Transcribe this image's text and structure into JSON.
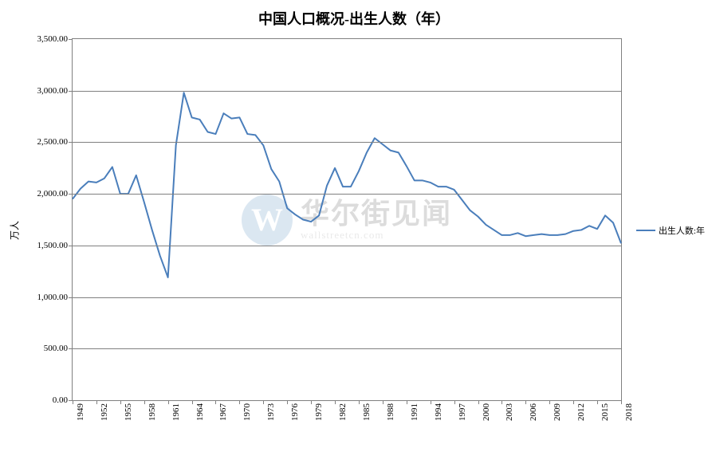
{
  "chart": {
    "type": "line",
    "title": "中国人口概况-出生人数（年）",
    "title_fontsize": 18,
    "ylabel": "万人",
    "label_fontsize": 12,
    "background_color": "#ffffff",
    "plot_border_color": "#808080",
    "grid_color": "#808080",
    "line_color": "#4a7ebb",
    "line_width": 2,
    "text_color": "#000000",
    "tick_fontsize": 11,
    "ylim": [
      0,
      3500
    ],
    "ytick_step": 500,
    "yticks": [
      "0.00",
      "500.00",
      "1,000.00",
      "1,500.00",
      "2,000.00",
      "2,500.00",
      "3,000.00",
      "3,500.00"
    ],
    "xtick_step": 3,
    "xticks": [
      "1949",
      "1952",
      "1955",
      "1958",
      "1961",
      "1964",
      "1967",
      "1970",
      "1973",
      "1976",
      "1979",
      "1982",
      "1985",
      "1988",
      "1991",
      "1994",
      "1997",
      "2000",
      "2003",
      "2006",
      "2009",
      "2012",
      "2015",
      "2018"
    ],
    "legend": {
      "label": "出生人数:年",
      "position": "right-middle"
    },
    "watermark": {
      "icon_text": "W",
      "main": "华尔街见闻",
      "sub": "wallstreetcn.com",
      "opacity": 0.18
    },
    "years": [
      1949,
      1950,
      1951,
      1952,
      1953,
      1954,
      1955,
      1956,
      1957,
      1958,
      1959,
      1960,
      1961,
      1962,
      1963,
      1964,
      1965,
      1966,
      1967,
      1968,
      1969,
      1970,
      1971,
      1972,
      1973,
      1974,
      1975,
      1976,
      1977,
      1978,
      1979,
      1980,
      1981,
      1982,
      1983,
      1984,
      1985,
      1986,
      1987,
      1988,
      1989,
      1990,
      1991,
      1992,
      1993,
      1994,
      1995,
      1996,
      1997,
      1998,
      1999,
      2000,
      2001,
      2002,
      2003,
      2004,
      2005,
      2006,
      2007,
      2008,
      2009,
      2010,
      2011,
      2012,
      2013,
      2014,
      2015,
      2016,
      2017,
      2018
    ],
    "values": [
      1950,
      2050,
      2120,
      2110,
      2150,
      2260,
      2000,
      2000,
      2180,
      1920,
      1650,
      1400,
      1190,
      2470,
      2980,
      2740,
      2720,
      2600,
      2580,
      2780,
      2730,
      2740,
      2580,
      2570,
      2470,
      2240,
      2120,
      1860,
      1800,
      1750,
      1730,
      1790,
      2080,
      2250,
      2070,
      2070,
      2220,
      2400,
      2540,
      2480,
      2420,
      2400,
      2270,
      2130,
      2130,
      2110,
      2070,
      2070,
      2040,
      1940,
      1840,
      1780,
      1700,
      1650,
      1600,
      1600,
      1620,
      1590,
      1600,
      1610,
      1600,
      1600,
      1610,
      1640,
      1650,
      1690,
      1660,
      1790,
      1720,
      1520
    ]
  }
}
